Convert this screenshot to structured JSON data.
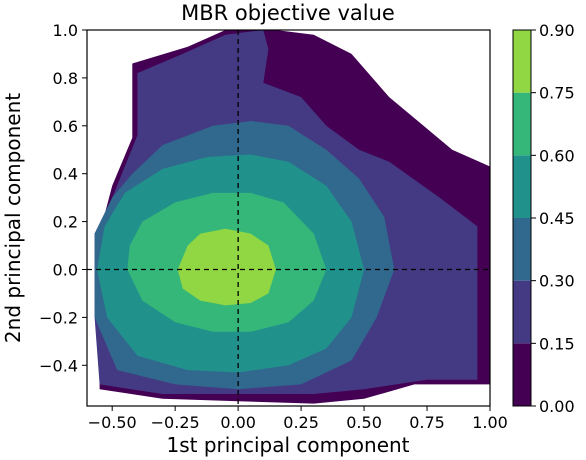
{
  "chart_data": {
    "type": "contourf",
    "title": "MBR objective value",
    "xlabel": "1st principal component",
    "ylabel": "2nd principal component",
    "xlim": [
      -0.6,
      1.0
    ],
    "ylim": [
      -0.57,
      1.0
    ],
    "xticks": [
      -0.5,
      -0.25,
      0.0,
      0.25,
      0.5,
      0.75,
      1.0
    ],
    "xtick_labels": [
      "−0.50",
      "−0.25",
      "0.00",
      "0.25",
      "0.50",
      "0.75",
      "1.00"
    ],
    "yticks": [
      -0.4,
      -0.2,
      0.0,
      0.2,
      0.4,
      0.6,
      0.8,
      1.0
    ],
    "ytick_labels": [
      "−0.4",
      "−0.2",
      "0.0",
      "0.2",
      "0.4",
      "0.6",
      "0.8",
      "1.0"
    ],
    "reference_lines": {
      "x": 0.0,
      "y": 0.0,
      "style": "dashed",
      "color": "#000000"
    },
    "center": [
      -0.05,
      0.0
    ],
    "levels": [
      0.0,
      0.15,
      0.3,
      0.45,
      0.6,
      0.75,
      0.9
    ],
    "level_colors": [
      "#440154",
      "#443983",
      "#31688e",
      "#21918c",
      "#35b779",
      "#90d743",
      "#cde11d"
    ],
    "colorbar": {
      "ticks": [
        0.0,
        0.15,
        0.3,
        0.45,
        0.6,
        0.75,
        0.9
      ],
      "tick_labels": [
        "0.00",
        "0.15",
        "0.30",
        "0.45",
        "0.60",
        "0.75",
        "0.90"
      ]
    },
    "contour_regions": [
      {
        "level_range": [
          0.0,
          0.15
        ],
        "points": [
          [
            -0.42,
            0.55
          ],
          [
            -0.42,
            0.86
          ],
          [
            -0.2,
            0.93
          ],
          [
            -0.05,
            1.0
          ],
          [
            0.15,
            1.0
          ],
          [
            0.3,
            0.98
          ],
          [
            0.45,
            0.9
          ],
          [
            0.6,
            0.72
          ],
          [
            0.85,
            0.5
          ],
          [
            1.0,
            0.43
          ],
          [
            1.0,
            -0.48
          ],
          [
            0.7,
            -0.48
          ],
          [
            0.5,
            -0.54
          ],
          [
            0.3,
            -0.56
          ],
          [
            0.0,
            -0.55
          ],
          [
            -0.3,
            -0.54
          ],
          [
            -0.55,
            -0.5
          ],
          [
            -0.55,
            -0.2
          ],
          [
            -0.55,
            0.15
          ],
          [
            -0.5,
            0.35
          ]
        ]
      },
      {
        "level_range": [
          0.15,
          0.3
        ],
        "points": [
          [
            -0.4,
            0.56
          ],
          [
            -0.4,
            0.82
          ],
          [
            -0.22,
            0.9
          ],
          [
            -0.05,
            0.98
          ],
          [
            0.1,
            1.0
          ],
          [
            0.12,
            0.92
          ],
          [
            0.1,
            0.78
          ],
          [
            0.25,
            0.72
          ],
          [
            0.35,
            0.6
          ],
          [
            0.48,
            0.5
          ],
          [
            0.6,
            0.45
          ],
          [
            0.8,
            0.3
          ],
          [
            0.95,
            0.18
          ],
          [
            0.95,
            -0.46
          ],
          [
            0.75,
            -0.46
          ],
          [
            0.5,
            -0.5
          ],
          [
            0.3,
            -0.52
          ],
          [
            0.0,
            -0.52
          ],
          [
            -0.3,
            -0.52
          ],
          [
            -0.55,
            -0.48
          ],
          [
            -0.57,
            -0.2
          ],
          [
            -0.57,
            0.15
          ],
          [
            -0.5,
            0.3
          ]
        ]
      },
      {
        "level_range": [
          0.3,
          0.45
        ],
        "points": [
          [
            -0.42,
            0.4
          ],
          [
            -0.3,
            0.52
          ],
          [
            -0.1,
            0.6
          ],
          [
            0.05,
            0.62
          ],
          [
            0.2,
            0.6
          ],
          [
            0.35,
            0.5
          ],
          [
            0.48,
            0.38
          ],
          [
            0.58,
            0.22
          ],
          [
            0.62,
            0.0
          ],
          [
            0.55,
            -0.2
          ],
          [
            0.45,
            -0.38
          ],
          [
            0.25,
            -0.48
          ],
          [
            0.0,
            -0.5
          ],
          [
            -0.25,
            -0.48
          ],
          [
            -0.48,
            -0.42
          ],
          [
            -0.57,
            -0.2
          ],
          [
            -0.57,
            0.15
          ],
          [
            -0.5,
            0.3
          ]
        ]
      },
      {
        "level_range": [
          0.45,
          0.6
        ],
        "points": [
          [
            -0.45,
            0.32
          ],
          [
            -0.3,
            0.42
          ],
          [
            -0.12,
            0.47
          ],
          [
            0.05,
            0.48
          ],
          [
            0.2,
            0.45
          ],
          [
            0.35,
            0.35
          ],
          [
            0.45,
            0.2
          ],
          [
            0.5,
            0.0
          ],
          [
            0.45,
            -0.2
          ],
          [
            0.35,
            -0.33
          ],
          [
            0.2,
            -0.4
          ],
          [
            0.0,
            -0.43
          ],
          [
            -0.2,
            -0.42
          ],
          [
            -0.4,
            -0.36
          ],
          [
            -0.52,
            -0.2
          ],
          [
            -0.56,
            0.0
          ],
          [
            -0.53,
            0.18
          ]
        ]
      },
      {
        "level_range": [
          0.6,
          0.75
        ],
        "points": [
          [
            -0.38,
            0.2
          ],
          [
            -0.25,
            0.28
          ],
          [
            -0.1,
            0.32
          ],
          [
            0.05,
            0.32
          ],
          [
            0.18,
            0.28
          ],
          [
            0.3,
            0.15
          ],
          [
            0.35,
            0.0
          ],
          [
            0.3,
            -0.13
          ],
          [
            0.2,
            -0.22
          ],
          [
            0.05,
            -0.26
          ],
          [
            -0.1,
            -0.26
          ],
          [
            -0.25,
            -0.22
          ],
          [
            -0.38,
            -0.13
          ],
          [
            -0.44,
            0.0
          ],
          [
            -0.43,
            0.1
          ]
        ]
      },
      {
        "level_range": [
          0.75,
          0.9
        ],
        "points": [
          [
            -0.2,
            0.1
          ],
          [
            -0.15,
            0.15
          ],
          [
            -0.05,
            0.17
          ],
          [
            0.05,
            0.15
          ],
          [
            0.12,
            0.1
          ],
          [
            0.15,
            0.0
          ],
          [
            0.12,
            -0.1
          ],
          [
            0.05,
            -0.14
          ],
          [
            -0.05,
            -0.15
          ],
          [
            -0.15,
            -0.13
          ],
          [
            -0.22,
            -0.08
          ],
          [
            -0.24,
            0.0
          ]
        ]
      }
    ]
  }
}
